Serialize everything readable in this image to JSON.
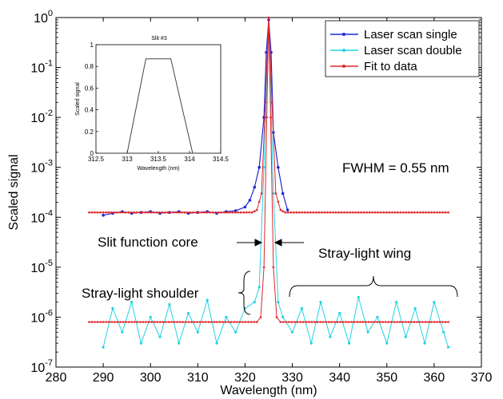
{
  "chart_data": [
    {
      "type": "line",
      "title": "",
      "xlabel": "Wavelength (nm)",
      "ylabel": "Scaled signal",
      "xlim": [
        280,
        370
      ],
      "ylim": [
        1e-07,
        1
      ],
      "yscale": "log",
      "xticks": [
        "280",
        "290",
        "300",
        "310",
        "320",
        "330",
        "340",
        "350",
        "360",
        "370"
      ],
      "yticks": [
        {
          "base": "10",
          "exp": "0"
        },
        {
          "base": "10",
          "exp": "-1"
        },
        {
          "base": "10",
          "exp": "-2"
        },
        {
          "base": "10",
          "exp": "-3"
        },
        {
          "base": "10",
          "exp": "-4"
        },
        {
          "base": "10",
          "exp": "-5"
        },
        {
          "base": "10",
          "exp": "-6"
        },
        {
          "base": "10",
          "exp": "-7"
        }
      ],
      "grid": false,
      "legend_position": "top-right",
      "series": [
        {
          "name": "Laser scan single",
          "color": "#1f2bd6",
          "marker": "dot",
          "x": [
            290,
            292,
            294,
            296,
            298,
            300,
            302,
            304,
            306,
            308,
            310,
            312,
            314,
            316,
            318,
            320,
            321,
            322,
            323,
            324,
            324.5,
            325,
            325.5,
            326,
            327,
            328,
            329
          ],
          "y": [
            0.00011,
            0.00012,
            0.00013,
            0.00012,
            0.000125,
            0.00013,
            0.00012,
            0.000125,
            0.00013,
            0.00012,
            0.000125,
            0.00013,
            0.00012,
            0.00013,
            0.000135,
            0.00016,
            0.00022,
            0.0004,
            0.001,
            0.01,
            0.2,
            0.9,
            0.2,
            0.005,
            0.001,
            0.0003,
            0.00014
          ]
        },
        {
          "name": "Laser scan double",
          "color": "#22d3e6",
          "marker": "dot",
          "x": [
            290,
            292,
            294,
            296,
            298,
            300,
            302,
            304,
            306,
            308,
            310,
            312,
            314,
            316,
            318,
            320,
            322,
            323,
            324,
            325,
            326,
            327,
            328,
            330,
            332,
            334,
            336,
            338,
            340,
            342,
            344,
            346,
            348,
            350,
            352,
            354,
            356,
            358,
            360,
            362,
            363
          ],
          "y": [
            2.5e-07,
            1.5e-06,
            5e-07,
            2e-06,
            3e-07,
            1e-06,
            4e-07,
            1.8e-06,
            3e-07,
            1.2e-06,
            5e-07,
            2.2e-06,
            3e-07,
            1e-06,
            5e-07,
            1.5e-06,
            2e-06,
            4e-06,
            0.001,
            0.9,
            0.0003,
            2e-06,
            1e-06,
            5e-07,
            1.5e-06,
            3e-07,
            2e-06,
            4e-07,
            1.2e-06,
            3e-07,
            2.5e-06,
            5e-07,
            1e-06,
            3e-07,
            2e-06,
            4e-07,
            1.5e-06,
            3e-07,
            2e-06,
            5e-07,
            2.5e-07
          ]
        },
        {
          "name": "Fit to data",
          "color": "#e0262a",
          "marker": "dot",
          "x": [
            287,
            321.5,
            322.5,
            323.5,
            324.3,
            325,
            325.7,
            326.5,
            327.5,
            328.5,
            363
          ],
          "y": [
            0.000125,
            0.000125,
            0.00014,
            0.0003,
            0.02,
            1,
            0.02,
            0.0003,
            0.00014,
            0.000125,
            0.000125
          ],
          "x_low": [
            287,
            322.5,
            323.3,
            324,
            324.6,
            325,
            325.4,
            326,
            326.7,
            327.5,
            363
          ],
          "y_low": [
            8e-07,
            8e-07,
            1e-06,
            1e-05,
            0.01,
            1,
            0.01,
            1e-05,
            1e-06,
            8e-07,
            8e-07
          ]
        }
      ],
      "annotations": [
        {
          "text": "FWHM = 0.55 nm"
        },
        {
          "text": "Slit function core"
        },
        {
          "text": "Stray-light wing"
        },
        {
          "text": "Stray-light shoulder"
        }
      ]
    },
    {
      "type": "line",
      "title": "Slit #3",
      "xlabel": "Wavelength (nm)",
      "ylabel": "Scaled signal",
      "xlim": [
        312.5,
        314.5
      ],
      "ylim": [
        0,
        1
      ],
      "xticks": [
        "312.5",
        "313",
        "313.5",
        "314",
        "314.5"
      ],
      "yticks": [
        "0",
        "0.2",
        "0.4",
        "0.6",
        "0.8",
        "1"
      ],
      "series": [
        {
          "color": "#444444",
          "x": [
            313.0,
            313.3,
            313.7,
            314.05
          ],
          "y": [
            0,
            0.87,
            0.87,
            0
          ]
        }
      ]
    }
  ]
}
